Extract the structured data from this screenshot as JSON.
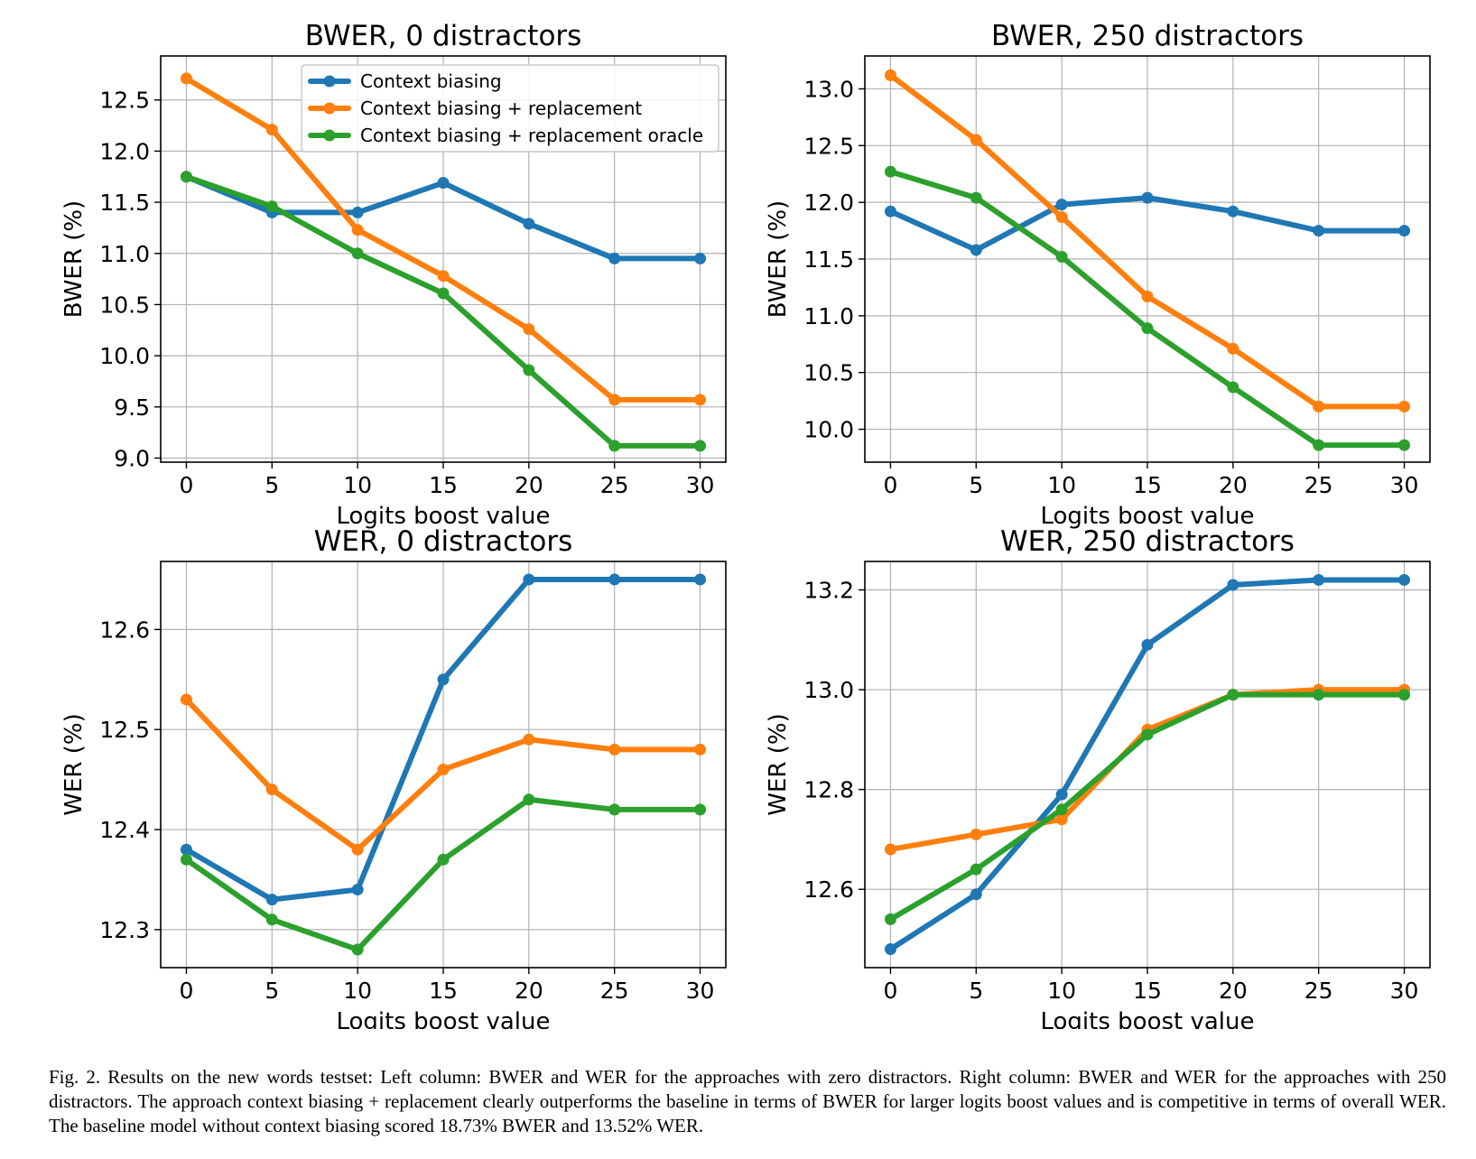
{
  "chart_data": [
    {
      "type": "line",
      "title": "BWER, 0 distractors",
      "xlabel": "Logits boost value",
      "ylabel": "BWER (%)",
      "x": [
        0,
        5,
        10,
        15,
        20,
        25,
        30
      ],
      "xticks": [
        "0",
        "5",
        "10",
        "15",
        "20",
        "25",
        "30"
      ],
      "yticks": [
        "9.0",
        "9.5",
        "10.0",
        "10.5",
        "11.0",
        "11.5",
        "12.0",
        "12.5"
      ],
      "xlim": [
        -1.5,
        31.5
      ],
      "ylim": [
        8.96,
        12.93
      ],
      "grid": true,
      "legend": "upper-right",
      "series": [
        {
          "name": "Context biasing",
          "color": "#1f77b4",
          "values": [
            11.75,
            11.4,
            11.4,
            11.69,
            11.29,
            10.95,
            10.95
          ]
        },
        {
          "name": "Context biasing + replacement",
          "color": "#ff7f0e",
          "values": [
            12.71,
            12.21,
            11.23,
            10.78,
            10.26,
            9.57,
            9.57
          ]
        },
        {
          "name": "Context biasing + replacement oracle",
          "color": "#2ca02c",
          "values": [
            11.75,
            11.46,
            11.0,
            10.61,
            9.86,
            9.12,
            9.12
          ]
        }
      ]
    },
    {
      "type": "line",
      "title": "BWER, 250 distractors",
      "xlabel": "Logits boost value",
      "ylabel": "BWER (%)",
      "x": [
        0,
        5,
        10,
        15,
        20,
        25,
        30
      ],
      "xticks": [
        "0",
        "5",
        "10",
        "15",
        "20",
        "25",
        "30"
      ],
      "yticks": [
        "10.0",
        "10.5",
        "11.0",
        "11.5",
        "12.0",
        "12.5",
        "13.0"
      ],
      "xlim": [
        -1.5,
        31.5
      ],
      "ylim": [
        9.71,
        13.29
      ],
      "grid": true,
      "series": [
        {
          "name": "Context biasing",
          "color": "#1f77b4",
          "values": [
            11.92,
            11.58,
            11.98,
            12.04,
            11.92,
            11.75,
            11.75
          ]
        },
        {
          "name": "Context biasing + replacement",
          "color": "#ff7f0e",
          "values": [
            13.12,
            12.55,
            11.87,
            11.17,
            10.71,
            10.2,
            10.2
          ]
        },
        {
          "name": "Context biasing + replacement oracle",
          "color": "#2ca02c",
          "values": [
            12.27,
            12.04,
            11.52,
            10.89,
            10.37,
            9.86,
            9.86
          ]
        }
      ]
    },
    {
      "type": "line",
      "title": "WER, 0 distractors",
      "xlabel": "Logits boost value",
      "ylabel": "WER (%)",
      "x": [
        0,
        5,
        10,
        15,
        20,
        25,
        30
      ],
      "xticks": [
        "0",
        "5",
        "10",
        "15",
        "20",
        "25",
        "30"
      ],
      "yticks": [
        "12.3",
        "12.4",
        "12.5",
        "12.6"
      ],
      "xlim": [
        -1.5,
        31.5
      ],
      "ylim": [
        12.262,
        12.668
      ],
      "grid": true,
      "series": [
        {
          "name": "Context biasing",
          "color": "#1f77b4",
          "values": [
            12.38,
            12.33,
            12.34,
            12.55,
            12.65,
            12.65,
            12.65
          ]
        },
        {
          "name": "Context biasing + replacement",
          "color": "#ff7f0e",
          "values": [
            12.53,
            12.44,
            12.38,
            12.46,
            12.49,
            12.48,
            12.48
          ]
        },
        {
          "name": "Context biasing + replacement oracle",
          "color": "#2ca02c",
          "values": [
            12.37,
            12.31,
            12.28,
            12.37,
            12.43,
            12.42,
            12.42
          ]
        }
      ]
    },
    {
      "type": "line",
      "title": "WER, 250 distractors",
      "xlabel": "Logits boost value",
      "ylabel": "WER (%)",
      "x": [
        0,
        5,
        10,
        15,
        20,
        25,
        30
      ],
      "xticks": [
        "0",
        "5",
        "10",
        "15",
        "20",
        "25",
        "30"
      ],
      "yticks": [
        "12.6",
        "12.8",
        "13.0",
        "13.2"
      ],
      "xlim": [
        -1.5,
        31.5
      ],
      "ylim": [
        12.443,
        13.257
      ],
      "grid": true,
      "series": [
        {
          "name": "Context biasing",
          "color": "#1f77b4",
          "values": [
            12.48,
            12.59,
            12.79,
            13.09,
            13.21,
            13.22,
            13.22
          ]
        },
        {
          "name": "Context biasing + replacement",
          "color": "#ff7f0e",
          "values": [
            12.68,
            12.71,
            12.74,
            12.92,
            12.99,
            13.0,
            13.0
          ]
        },
        {
          "name": "Context biasing + replacement oracle",
          "color": "#2ca02c",
          "values": [
            12.54,
            12.64,
            12.76,
            12.91,
            12.99,
            12.99,
            12.99
          ]
        }
      ]
    }
  ],
  "caption": "Fig. 2.  Results on the new words testset: Left column: BWER and WER for the approaches with zero distractors. Right column: BWER and WER for the approaches with 250 distractors. The approach context biasing + replacement clearly outperforms the baseline in terms of BWER for larger logits boost values and is competitive in terms of overall WER. The baseline model without context biasing scored 18.73% BWER and 13.52% WER."
}
